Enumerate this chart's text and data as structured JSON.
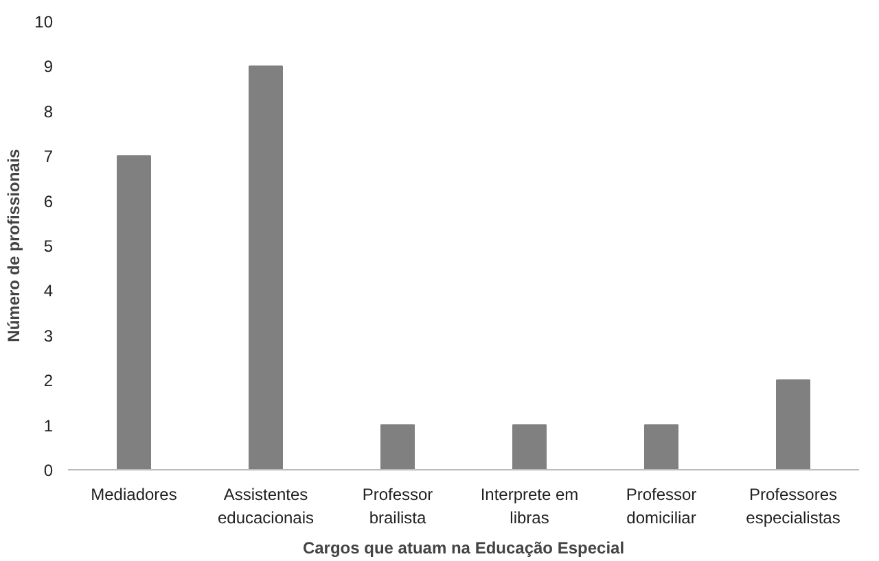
{
  "chart_data": {
    "type": "bar",
    "xlabel": "Cargos que atuam na Educação Especial",
    "ylabel": "Número de profissionais",
    "categories": [
      "Mediadores",
      "Assistentes\neducacionais",
      "Professor\nbrailista",
      "Interprete em\nlibras",
      "Professor\ndomiciliar",
      "Professores\nespecialistas"
    ],
    "values": [
      7,
      9,
      1,
      1,
      1,
      2
    ],
    "color": "#808080",
    "ylim": [
      0,
      10
    ],
    "yticks": [
      0,
      1,
      2,
      3,
      4,
      5,
      6,
      7,
      8,
      9,
      10
    ],
    "grid": false
  }
}
